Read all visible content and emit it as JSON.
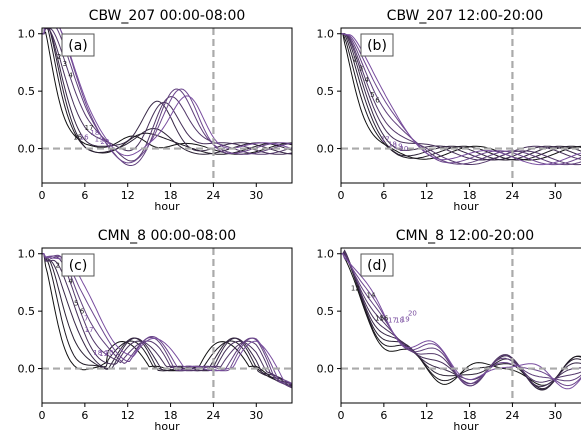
{
  "chart_data": [
    {
      "type": "line",
      "title": "CBW_207  00:00-08:00",
      "panel_label": "(a)",
      "xlabel": "hour",
      "ylabel": "",
      "xlim": [
        0,
        35
      ],
      "ylim": [
        -0.3,
        1.05
      ],
      "xticks": [
        0,
        6,
        12,
        18,
        24,
        30
      ],
      "yticks": [
        0.0,
        0.5,
        1.0
      ],
      "ytick_labels": [
        "0.0",
        "0.5",
        "1.0"
      ],
      "vline": 24,
      "hline": 0,
      "params": {
        "lag_start": 0,
        "lag_step": 0.8,
        "n": 9,
        "mode": "a"
      },
      "markers": [
        {
          "label": "2",
          "x": 2.4,
          "y": 0.78
        },
        {
          "label": "3",
          "x": 3.2,
          "y": 0.72
        },
        {
          "label": "4",
          "x": 4.0,
          "y": 0.62
        },
        {
          "label": "17",
          "x": 6.6,
          "y": 0.16
        },
        {
          "label": "15",
          "x": 5.0,
          "y": 0.08
        },
        {
          "label": "16",
          "x": 5.9,
          "y": 0.08
        },
        {
          "label": "18",
          "x": 7.4,
          "y": 0.12
        },
        {
          "label": "19",
          "x": 8.0,
          "y": 0.06
        },
        {
          "label": "20",
          "x": 8.8,
          "y": 0.04
        }
      ]
    },
    {
      "type": "line",
      "title": "CBW_207  12:00-20:00",
      "panel_label": "(b)",
      "xlabel": "hour",
      "ylabel": "",
      "xlim": [
        0,
        35
      ],
      "ylim": [
        -0.3,
        1.05
      ],
      "xticks": [
        0,
        6,
        12,
        18,
        24,
        30
      ],
      "yticks": [
        0.0,
        0.5,
        1.0
      ],
      "ytick_labels": [
        "0.0",
        "0.5",
        "1.0"
      ],
      "vline": 24,
      "hline": 0,
      "params": {
        "lag_start": 0,
        "lag_step": 0.8,
        "n": 9,
        "mode": "b"
      },
      "markers": [
        {
          "label": "2",
          "x": 2.0,
          "y": 0.76
        },
        {
          "label": "3",
          "x": 2.8,
          "y": 0.68
        },
        {
          "label": "4",
          "x": 3.6,
          "y": 0.58
        },
        {
          "label": "5",
          "x": 4.4,
          "y": 0.45
        },
        {
          "label": "6",
          "x": 5.1,
          "y": 0.4
        },
        {
          "label": "17",
          "x": 6.2,
          "y": 0.06
        },
        {
          "label": "18",
          "x": 7.2,
          "y": 0.02
        },
        {
          "label": "19",
          "x": 8.0,
          "y": 0.0
        },
        {
          "label": "20",
          "x": 8.8,
          "y": -0.02
        }
      ]
    },
    {
      "type": "line",
      "title": "CMN_8  00:00-08:00",
      "panel_label": "(c)",
      "xlabel": "hour",
      "ylabel": "",
      "xlim": [
        0,
        35
      ],
      "ylim": [
        -0.3,
        1.05
      ],
      "xticks": [
        0,
        6,
        12,
        18,
        24,
        30
      ],
      "yticks": [
        0.0,
        0.5,
        1.0
      ],
      "ytick_labels": [
        "0.0",
        "0.5",
        "1.0"
      ],
      "vline": 24,
      "hline": 0,
      "params": {
        "lag_start": 0,
        "lag_step": 0.85,
        "n": 9,
        "mode": "c"
      },
      "markers": [
        {
          "label": "2",
          "x": 2.2,
          "y": 0.88
        },
        {
          "label": "3",
          "x": 3.0,
          "y": 0.82
        },
        {
          "label": "4",
          "x": 4.0,
          "y": 0.74
        },
        {
          "label": "5",
          "x": 4.8,
          "y": 0.55
        },
        {
          "label": "6",
          "x": 5.6,
          "y": 0.48
        },
        {
          "label": "7",
          "x": 6.2,
          "y": 0.42
        },
        {
          "label": "17",
          "x": 6.6,
          "y": 0.32
        },
        {
          "label": "18",
          "x": 7.8,
          "y": 0.12
        },
        {
          "label": "19",
          "x": 8.6,
          "y": 0.11
        },
        {
          "label": "20",
          "x": 9.4,
          "y": 0.12
        }
      ]
    },
    {
      "type": "line",
      "title": "CMN_8  12:00-20:00",
      "panel_label": "(d)",
      "xlabel": "hour",
      "ylabel": "",
      "xlim": [
        0,
        35
      ],
      "ylim": [
        -0.3,
        1.05
      ],
      "xticks": [
        0,
        6,
        12,
        18,
        24,
        30
      ],
      "yticks": [
        0.0,
        0.5,
        1.0
      ],
      "ytick_labels": [
        "0.0",
        "0.5",
        "1.0"
      ],
      "vline": 24,
      "hline": 0,
      "params": {
        "lag_start": 0,
        "lag_step": 0.8,
        "n": 9,
        "mode": "d"
      },
      "markers": [
        {
          "label": "12",
          "x": 2.0,
          "y": 0.68
        },
        {
          "label": "14",
          "x": 4.2,
          "y": 0.62
        },
        {
          "label": "15",
          "x": 5.4,
          "y": 0.42
        },
        {
          "label": "16",
          "x": 6.0,
          "y": 0.42
        },
        {
          "label": "17",
          "x": 7.2,
          "y": 0.4
        },
        {
          "label": "18",
          "x": 8.2,
          "y": 0.4
        },
        {
          "label": "19",
          "x": 9.0,
          "y": 0.41
        },
        {
          "label": "20",
          "x": 10.0,
          "y": 0.46
        }
      ]
    }
  ],
  "colors": {
    "dark_line": "#111111",
    "purple_line": "#7a4fa0",
    "ref_line": "#aaaaaa",
    "axis": "#000000",
    "label_dark": "#222222",
    "label_purple": "#7a4fa0"
  }
}
